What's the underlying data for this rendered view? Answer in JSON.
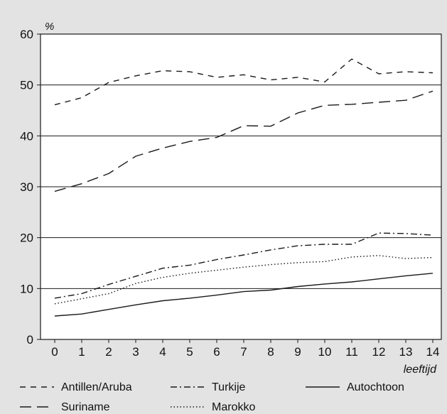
{
  "chart_data": {
    "type": "line",
    "ylabel": "%",
    "xlabel": "leeftijd",
    "ylim": [
      0,
      60
    ],
    "yticks": [
      "0",
      "10",
      "20",
      "30",
      "40",
      "50",
      "60"
    ],
    "categories": [
      "0",
      "1",
      "2",
      "3",
      "4",
      "5",
      "6",
      "7",
      "8",
      "9",
      "10",
      "11",
      "12",
      "13",
      "14"
    ],
    "grid": "horizontal",
    "legend_position": "bottom",
    "series": [
      {
        "name": "Antillen/Aruba",
        "style": "short-dash",
        "values": [
          46.1,
          47.5,
          50.5,
          51.8,
          52.8,
          52.6,
          51.5,
          52.0,
          51.0,
          51.5,
          50.6,
          55.1,
          52.2,
          52.6,
          52.4
        ]
      },
      {
        "name": "Suriname",
        "style": "long-dash",
        "values": [
          29.1,
          30.6,
          32.6,
          36.0,
          37.6,
          38.9,
          39.7,
          42.0,
          41.9,
          44.5,
          46.0,
          46.2,
          46.6,
          47.0,
          48.8
        ]
      },
      {
        "name": "Turkije",
        "style": "dash-dot",
        "values": [
          8.1,
          9.0,
          10.8,
          12.4,
          14.0,
          14.6,
          15.7,
          16.6,
          17.6,
          18.4,
          18.7,
          18.7,
          20.9,
          20.8,
          20.5
        ]
      },
      {
        "name": "Marokko",
        "style": "dotted",
        "values": [
          7.0,
          8.0,
          9.0,
          11.0,
          12.2,
          13.0,
          13.6,
          14.2,
          14.7,
          15.1,
          15.3,
          16.2,
          16.5,
          15.9,
          16.1
        ]
      },
      {
        "name": "Autochtoon",
        "style": "solid",
        "values": [
          4.6,
          5.0,
          5.9,
          6.8,
          7.6,
          8.1,
          8.7,
          9.4,
          9.7,
          10.4,
          10.9,
          11.3,
          11.9,
          12.5,
          13.0
        ]
      }
    ]
  }
}
